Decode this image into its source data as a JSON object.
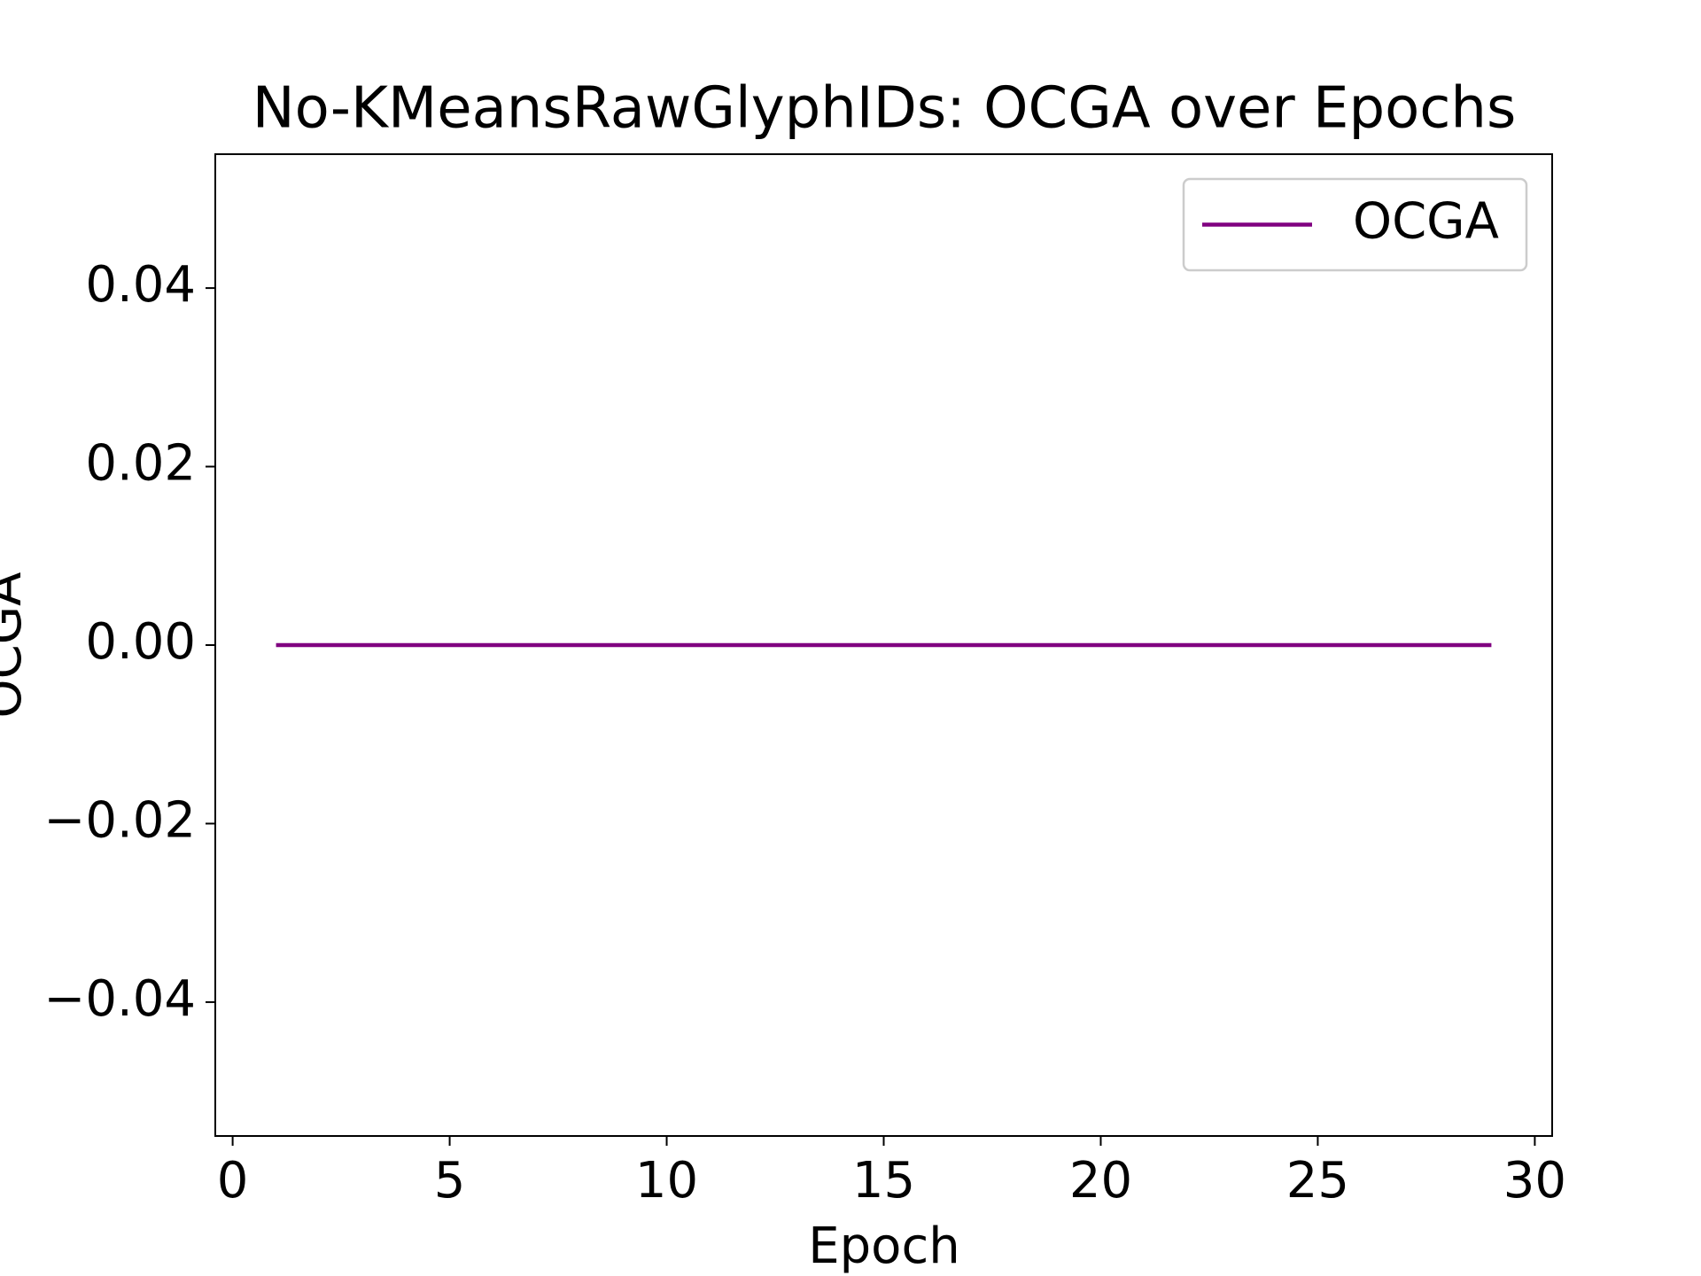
{
  "chart_data": {
    "type": "line",
    "title": "No-KMeansRawGlyphIDs: OCGA over Epochs",
    "xlabel": "Epoch",
    "ylabel": "OCGA",
    "x": [
      1,
      2,
      3,
      4,
      5,
      6,
      7,
      8,
      9,
      10,
      11,
      12,
      13,
      14,
      15,
      16,
      17,
      18,
      19,
      20,
      21,
      22,
      23,
      24,
      25,
      26,
      27,
      28,
      29
    ],
    "series": [
      {
        "name": "OCGA",
        "color": "#800080",
        "values": [
          0,
          0,
          0,
          0,
          0,
          0,
          0,
          0,
          0,
          0,
          0,
          0,
          0,
          0,
          0,
          0,
          0,
          0,
          0,
          0,
          0,
          0,
          0,
          0,
          0,
          0,
          0,
          0,
          0
        ]
      }
    ],
    "xlim": [
      -0.4,
      30.4
    ],
    "xticks": [
      0,
      5,
      10,
      15,
      20,
      25,
      30
    ],
    "ylim": [
      -0.055,
      0.055
    ],
    "yticks": [
      {
        "value": -0.04,
        "label": "−0.04"
      },
      {
        "value": -0.02,
        "label": "−0.02"
      },
      {
        "value": 0,
        "label": "0.00"
      },
      0.02,
      0.04
    ],
    "legend": "upper right",
    "grid": false
  }
}
